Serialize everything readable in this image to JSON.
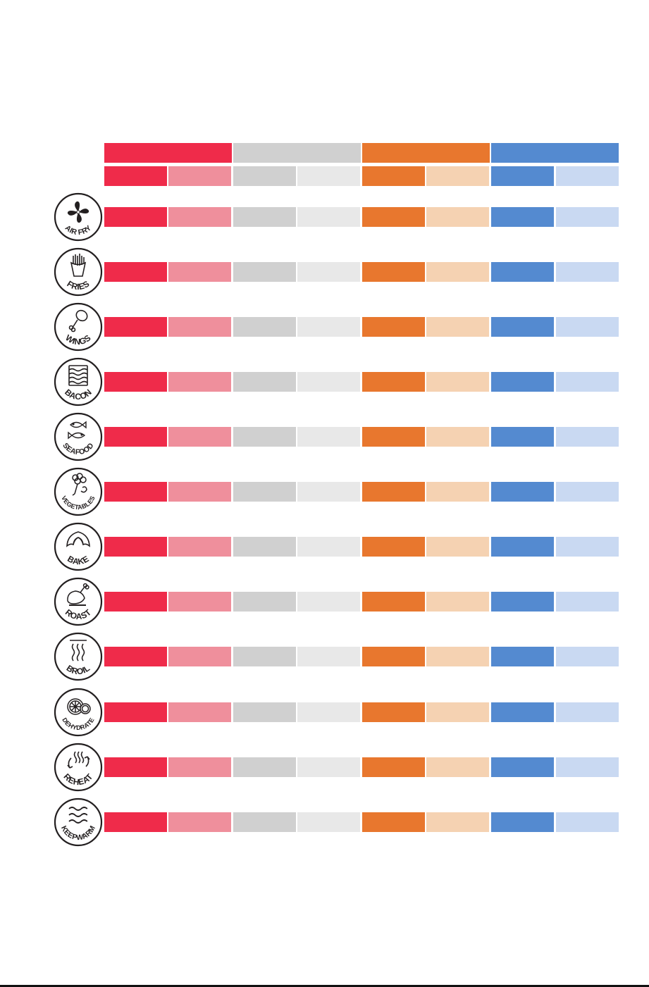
{
  "colors": {
    "red": "#ef2b4a",
    "red_light": "#ef8f9c",
    "gray": "#d0d0d0",
    "gray_light": "#e8e8e8",
    "orange": "#e8772e",
    "orange_light": "#f5d2b2",
    "blue": "#548ad0",
    "blue_light": "#c9d9f2",
    "icon_stroke": "#231f20"
  },
  "functions": [
    {
      "label": "AIR FRY",
      "icon": "fan-icon"
    },
    {
      "label": "FRIES",
      "icon": "fries-icon"
    },
    {
      "label": "WINGS",
      "icon": "drumstick-icon"
    },
    {
      "label": "BACON",
      "icon": "bacon-icon"
    },
    {
      "label": "SEAFOOD",
      "icon": "fish-icon"
    },
    {
      "label": "VEGETABLES",
      "icon": "vegetables-icon"
    },
    {
      "label": "BAKE",
      "icon": "croissant-icon"
    },
    {
      "label": "ROAST",
      "icon": "roast-chicken-icon"
    },
    {
      "label": "BROIL",
      "icon": "heat-waves-icon"
    },
    {
      "label": "DEHYDRATE",
      "icon": "citrus-slices-icon"
    },
    {
      "label": "REHEAT",
      "icon": "reheat-arrows-icon"
    },
    {
      "label": "KEEPWARM",
      "icon": "warm-waves-icon"
    }
  ]
}
